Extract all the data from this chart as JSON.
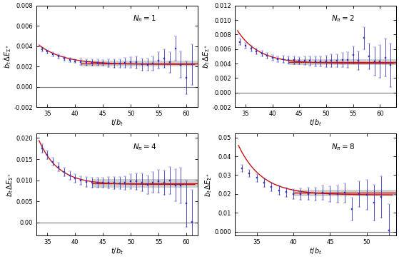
{
  "panels": [
    {
      "label": "N_{\\pi} = 1",
      "xlim": [
        33,
        62
      ],
      "ylim": [
        -0.002,
        0.008
      ],
      "yticks": [
        -0.002,
        0.0,
        0.002,
        0.004,
        0.006,
        0.008
      ],
      "xticks": [
        35,
        40,
        45,
        50,
        55,
        60
      ],
      "fit_plateau_start": 41,
      "fit_plateau_end": 62,
      "fit_value": 0.00228,
      "fit_band_half": 0.00028,
      "curve_x_start": 33.5,
      "curve_x_end": 61.5,
      "curve_A": 0.0039,
      "curve_B": 0.0022,
      "curve_tau": 4.5,
      "curve_t0": 34.0,
      "data_x": [
        34,
        35,
        36,
        37,
        38,
        39,
        40,
        41,
        42,
        43,
        44,
        45,
        46,
        47,
        48,
        49,
        50,
        51,
        52,
        53,
        54,
        55,
        56,
        57,
        58,
        59,
        60,
        61
      ],
      "data_y": [
        0.0037,
        0.00345,
        0.0032,
        0.00298,
        0.00278,
        0.00265,
        0.00253,
        0.00245,
        0.0024,
        0.00238,
        0.00238,
        0.00235,
        0.00232,
        0.0023,
        0.0023,
        0.00235,
        0.0024,
        0.0024,
        0.0022,
        0.00215,
        0.0023,
        0.0026,
        0.0028,
        0.0024,
        0.00375,
        0.00215,
        0.0009,
        0.0022
      ],
      "data_err": [
        0.0002,
        0.0002,
        0.0002,
        0.0002,
        0.0002,
        0.0002,
        0.0002,
        0.0003,
        0.0003,
        0.0003,
        0.0003,
        0.0003,
        0.0004,
        0.0004,
        0.0004,
        0.0005,
        0.0005,
        0.0006,
        0.0006,
        0.0006,
        0.0007,
        0.0008,
        0.0009,
        0.001,
        0.0012,
        0.0013,
        0.0016,
        0.002
      ]
    },
    {
      "label": "N_{\\pi} = 2",
      "xlim": [
        33,
        63
      ],
      "ylim": [
        -0.002,
        0.012
      ],
      "yticks": [
        -0.002,
        0.0,
        0.002,
        0.004,
        0.006,
        0.008,
        0.01,
        0.012
      ],
      "xticks": [
        35,
        40,
        45,
        50,
        55,
        60
      ],
      "fit_plateau_start": 43,
      "fit_plateau_end": 63,
      "fit_value": 0.0042,
      "fit_band_half": 0.0004,
      "curve_x_start": 33.5,
      "curve_x_end": 62.5,
      "curve_A": 0.008,
      "curve_B": 0.004,
      "curve_tau": 4.0,
      "curve_t0": 34.0,
      "data_x": [
        34,
        35,
        36,
        37,
        38,
        39,
        40,
        41,
        42,
        43,
        44,
        45,
        46,
        47,
        48,
        49,
        50,
        51,
        52,
        53,
        54,
        55,
        56,
        57,
        58,
        59,
        60,
        61,
        62
      ],
      "data_y": [
        0.007,
        0.0065,
        0.0061,
        0.0057,
        0.00535,
        0.00505,
        0.0048,
        0.0046,
        0.0046,
        0.0045,
        0.00445,
        0.0044,
        0.0044,
        0.00435,
        0.0043,
        0.0043,
        0.0043,
        0.0044,
        0.0044,
        0.0045,
        0.0045,
        0.0052,
        0.0044,
        0.0075,
        0.005,
        0.0043,
        0.0043,
        0.0048,
        0.0038
      ],
      "data_err": [
        0.0004,
        0.0004,
        0.0004,
        0.0004,
        0.0004,
        0.0004,
        0.0004,
        0.0004,
        0.0005,
        0.0005,
        0.0005,
        0.0005,
        0.0006,
        0.0006,
        0.0007,
        0.0007,
        0.0008,
        0.0009,
        0.0009,
        0.001,
        0.0011,
        0.0012,
        0.0013,
        0.0015,
        0.0018,
        0.002,
        0.0023,
        0.0026,
        0.003
      ]
    },
    {
      "label": "N_{\\pi} = 4",
      "xlim": [
        33,
        62
      ],
      "ylim": [
        -0.003,
        0.021
      ],
      "yticks": [
        0.0,
        0.005,
        0.01,
        0.015,
        0.02
      ],
      "xticks": [
        35,
        40,
        45,
        50,
        55,
        60
      ],
      "fit_plateau_start": 43,
      "fit_plateau_end": 62,
      "fit_value": 0.0093,
      "fit_band_half": 0.001,
      "curve_x_start": 33.5,
      "curve_x_end": 61.5,
      "curve_A": 0.018,
      "curve_B": 0.009,
      "curve_tau": 3.5,
      "curve_t0": 34.0,
      "data_x": [
        34,
        35,
        36,
        37,
        38,
        39,
        40,
        41,
        42,
        43,
        44,
        45,
        46,
        47,
        48,
        49,
        50,
        51,
        52,
        53,
        54,
        55,
        56,
        57,
        58,
        59,
        60,
        61
      ],
      "data_y": [
        0.0176,
        0.016,
        0.0144,
        0.0131,
        0.01195,
        0.0111,
        0.0104,
        0.0099,
        0.0096,
        0.0095,
        0.0094,
        0.0094,
        0.00945,
        0.0094,
        0.00935,
        0.0094,
        0.0097,
        0.0097,
        0.0095,
        0.009,
        0.0095,
        0.0098,
        0.0094,
        0.01,
        0.0088,
        0.0087,
        0.0045,
        0.0002
      ],
      "data_err": [
        0.001,
        0.001,
        0.001,
        0.001,
        0.001,
        0.001,
        0.001,
        0.001,
        0.0012,
        0.0012,
        0.0012,
        0.0012,
        0.0014,
        0.0014,
        0.0015,
        0.0016,
        0.0018,
        0.0019,
        0.0021,
        0.0022,
        0.0024,
        0.0027,
        0.0029,
        0.0032,
        0.0038,
        0.0042,
        0.0055,
        0.0075
      ]
    },
    {
      "label": "N_{\\pi} = 8",
      "xlim": [
        32,
        54
      ],
      "ylim": [
        -0.002,
        0.052
      ],
      "yticks": [
        0.0,
        0.01,
        0.02,
        0.03,
        0.04,
        0.05
      ],
      "xticks": [
        35,
        40,
        45,
        50
      ],
      "fit_plateau_start": 40,
      "fit_plateau_end": 54,
      "fit_value": 0.0205,
      "fit_band_half": 0.0018,
      "curve_x_start": 32.5,
      "curve_x_end": 53.5,
      "curve_A": 0.042,
      "curve_B": 0.0195,
      "curve_tau": 3.2,
      "curve_t0": 33.0,
      "data_x": [
        33,
        34,
        35,
        36,
        37,
        38,
        39,
        40,
        41,
        42,
        43,
        44,
        45,
        46,
        47,
        48,
        49,
        50,
        51,
        52,
        53
      ],
      "data_y": [
        0.0335,
        0.031,
        0.0285,
        0.026,
        0.0238,
        0.022,
        0.021,
        0.02,
        0.0198,
        0.02,
        0.02,
        0.0205,
        0.02,
        0.02,
        0.0205,
        0.012,
        0.0198,
        0.0195,
        0.0155,
        0.0185,
        0.0005
      ],
      "data_err": [
        0.002,
        0.002,
        0.0022,
        0.0022,
        0.0023,
        0.0024,
        0.0025,
        0.0027,
        0.003,
        0.0032,
        0.0035,
        0.0038,
        0.0042,
        0.0046,
        0.0052,
        0.006,
        0.0068,
        0.008,
        0.0095,
        0.011,
        0.014
      ]
    }
  ],
  "ylabel": "$b_t\\, \\Delta E_{\\Sigma^+}$",
  "xlabel": "$t/b_t$",
  "data_color": "#3333bb",
  "curve_color": "#cc1111",
  "band_color": "#aaaaaa",
  "zero_line_color": "#777777",
  "background_color": "#ffffff",
  "label_fontsize": 7.5,
  "tick_fontsize": 6.0,
  "axis_label_fontsize": 7.0
}
